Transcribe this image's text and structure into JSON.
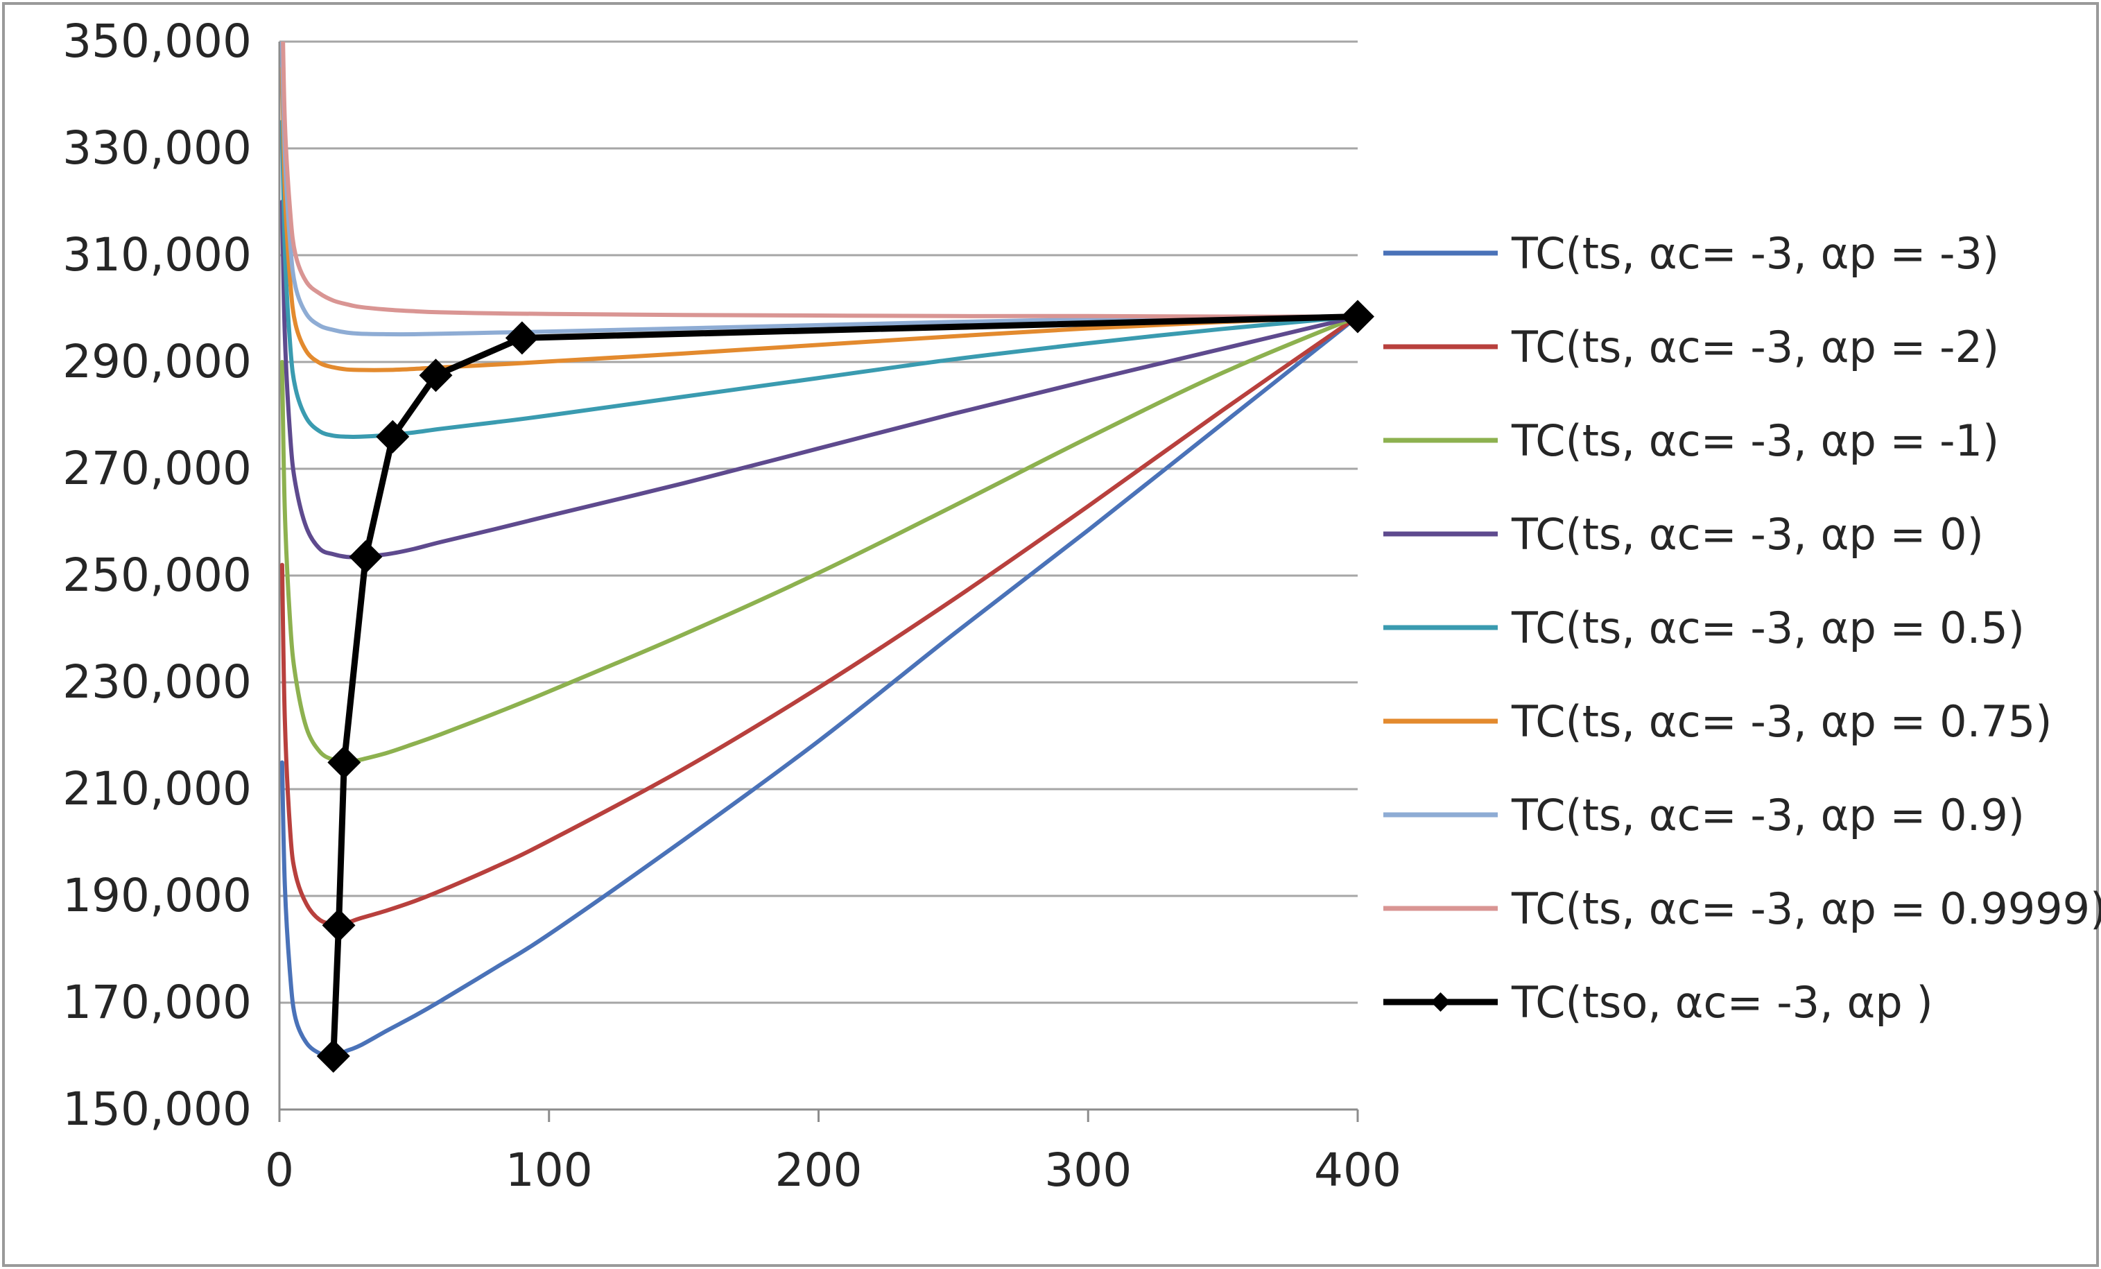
{
  "chart_data": {
    "type": "line",
    "title": "",
    "xlabel": "",
    "ylabel": "",
    "xlim": [
      0,
      400
    ],
    "ylim": [
      150000,
      350000
    ],
    "x_ticks": [
      0,
      100,
      200,
      300,
      400
    ],
    "y_ticks": [
      150000,
      170000,
      190000,
      210000,
      230000,
      250000,
      270000,
      290000,
      310000,
      330000,
      350000
    ],
    "x_tick_labels": [
      "0",
      "100",
      "200",
      "300",
      "400"
    ],
    "y_tick_labels": [
      "150,000",
      "170,000",
      "190,000",
      "210,000",
      "230,000",
      "250,000",
      "270,000",
      "290,000",
      "310,000",
      "330,000",
      "350,000"
    ],
    "grid": "horizontal",
    "legend_position": "right",
    "x": [
      1,
      2,
      4,
      6,
      10,
      15,
      20,
      25,
      30,
      40,
      50,
      60,
      80,
      100,
      150,
      200,
      250,
      300,
      350,
      400
    ],
    "series": [
      {
        "name": "TC(ts, αc= -3, αp = -3)",
        "color": "#4a72b8",
        "values": [
          215000,
          192000,
          175000,
          167000,
          162500,
          160500,
          160000,
          161000,
          162000,
          164800,
          167500,
          170400,
          176500,
          182800,
          200500,
          219000,
          239000,
          258500,
          278500,
          298500
        ]
      },
      {
        "name": "TC(ts, αc= -3, αp = -2)",
        "color": "#b8403d",
        "values": [
          252000,
          223000,
          202000,
          194000,
          188500,
          185500,
          184800,
          185000,
          185800,
          187300,
          189000,
          191000,
          195400,
          200300,
          213800,
          229000,
          245500,
          263000,
          281000,
          298500
        ]
      },
      {
        "name": "TC(ts, αc= -3, αp = -1)",
        "color": "#8db14f",
        "values": [
          290000,
          262000,
          241000,
          231000,
          221500,
          217000,
          215500,
          215000,
          215500,
          216800,
          218500,
          220300,
          224200,
          228300,
          239000,
          250500,
          263000,
          275800,
          288000,
          298500
        ]
      },
      {
        "name": "TC(ts, αc= -3, αp = 0)",
        "color": "#5e4a8e",
        "values": [
          320000,
          295000,
          276000,
          267000,
          259000,
          255000,
          254000,
          253500,
          253500,
          254000,
          255000,
          256300,
          258700,
          261200,
          267300,
          273800,
          280300,
          286500,
          292500,
          298500
        ]
      },
      {
        "name": "TC(ts, αc= -3, αp = 0.5)",
        "color": "#3a9bb0",
        "values": [
          335000,
          311000,
          293000,
          285000,
          279500,
          277000,
          276200,
          276000,
          276000,
          276300,
          276800,
          277500,
          278700,
          280000,
          283500,
          287000,
          290500,
          293500,
          296200,
          298500
        ]
      },
      {
        "name": "TC(ts, αc= -3, αp = 0.75)",
        "color": "#e38a2e",
        "values": [
          345000,
          322000,
          305000,
          297000,
          292000,
          289800,
          289000,
          288600,
          288500,
          288500,
          288700,
          289000,
          289500,
          290100,
          291600,
          293200,
          294800,
          296300,
          297500,
          298500
        ]
      },
      {
        "name": "TC(ts, αc= -3, αp = 0.9)",
        "color": "#8eacd4",
        "values": [
          350000,
          329000,
          312000,
          304000,
          299000,
          296800,
          296000,
          295500,
          295300,
          295200,
          295200,
          295300,
          295500,
          295700,
          296300,
          296900,
          297500,
          298000,
          298300,
          298500
        ]
      },
      {
        "name": "TC(ts, αc= -3, αp = 0.9999)",
        "color": "#d99593",
        "values": [
          360000,
          335000,
          318000,
          310000,
          305000,
          302800,
          301500,
          300800,
          300300,
          299800,
          299500,
          299300,
          299100,
          299000,
          298800,
          298700,
          298600,
          298600,
          298500,
          298500
        ]
      },
      {
        "name": "TC(tso, αc= -3, αp )",
        "color": "#000000",
        "points": [
          [
            20,
            160000
          ],
          [
            22,
            184500
          ],
          [
            24,
            215000
          ],
          [
            32,
            253500
          ],
          [
            42,
            276000
          ],
          [
            58,
            287500
          ],
          [
            90,
            294500
          ],
          [
            400,
            298500
          ]
        ]
      }
    ]
  }
}
